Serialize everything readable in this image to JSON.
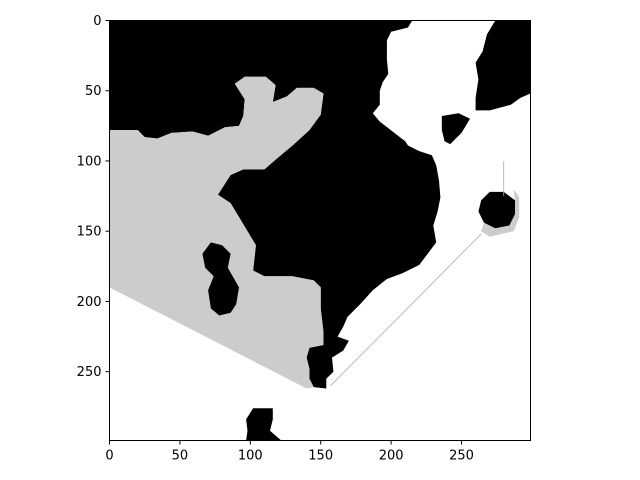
{
  "chart_data": {
    "type": "heatmap",
    "title": "",
    "xlabel": "",
    "ylabel": "",
    "xlim": [
      0,
      299
    ],
    "ylim": [
      299,
      0
    ],
    "x_ticks": [
      0,
      50,
      100,
      150,
      200,
      250
    ],
    "y_ticks": [
      0,
      50,
      100,
      150,
      200,
      250
    ],
    "x_tick_labels": [
      "0",
      "50",
      "100",
      "150",
      "200",
      "250"
    ],
    "y_tick_labels": [
      "0",
      "50",
      "100",
      "150",
      "200",
      "250"
    ],
    "grid": false,
    "colormap": "gray",
    "value_levels": [
      {
        "value": 0,
        "color": "#000000"
      },
      {
        "value": 0.8,
        "color": "#cccccc"
      },
      {
        "value": 1,
        "color": "#ffffff"
      }
    ],
    "regions": [
      {
        "name": "black-main",
        "value": 0,
        "points": [
          [
            0,
            0
          ],
          [
            215,
            0
          ],
          [
            212,
            5
          ],
          [
            200,
            8
          ],
          [
            197,
            14
          ],
          [
            197,
            28
          ],
          [
            198,
            38
          ],
          [
            194,
            44
          ],
          [
            192,
            50
          ],
          [
            192,
            60
          ],
          [
            187,
            66
          ],
          [
            192,
            72
          ],
          [
            210,
            86
          ],
          [
            212,
            89
          ],
          [
            220,
            93
          ],
          [
            229,
            96
          ],
          [
            232,
            103
          ],
          [
            234,
            114
          ],
          [
            235,
            126
          ],
          [
            233,
            136
          ],
          [
            230,
            146
          ],
          [
            232,
            158
          ],
          [
            226,
            166
          ],
          [
            220,
            174
          ],
          [
            208,
            180
          ],
          [
            197,
            184
          ],
          [
            187,
            192
          ],
          [
            178,
            202
          ],
          [
            169,
            211
          ],
          [
            166,
            218
          ],
          [
            162,
            225
          ],
          [
            170,
            228
          ],
          [
            166,
            235
          ],
          [
            158,
            240
          ],
          [
            159,
            250
          ],
          [
            154,
            255
          ],
          [
            154,
            262
          ],
          [
            145,
            261
          ],
          [
            142,
            255
          ],
          [
            142,
            248
          ],
          [
            140,
            240
          ],
          [
            142,
            233
          ],
          [
            152,
            231
          ],
          [
            152,
            222
          ],
          [
            150,
            205
          ],
          [
            150,
            190
          ],
          [
            145,
            185
          ],
          [
            130,
            182
          ],
          [
            110,
            182
          ],
          [
            102,
            178
          ],
          [
            104,
            160
          ],
          [
            95,
            145
          ],
          [
            86,
            130
          ],
          [
            77,
            124
          ],
          [
            86,
            110
          ],
          [
            95,
            106
          ],
          [
            110,
            106
          ],
          [
            118,
            99
          ],
          [
            130,
            89
          ],
          [
            142,
            78
          ],
          [
            150,
            67
          ],
          [
            152,
            52
          ],
          [
            145,
            48
          ],
          [
            133,
            48
          ],
          [
            126,
            54
          ],
          [
            116,
            58
          ],
          [
            118,
            46
          ],
          [
            111,
            40
          ],
          [
            96,
            40
          ],
          [
            89,
            45
          ],
          [
            96,
            56
          ],
          [
            95,
            68
          ],
          [
            92,
            75
          ],
          [
            82,
            76
          ],
          [
            70,
            82
          ],
          [
            59,
            79
          ],
          [
            44,
            80
          ],
          [
            34,
            84
          ],
          [
            25,
            83
          ],
          [
            20,
            78
          ],
          [
            0,
            78
          ]
        ]
      },
      {
        "name": "gray-region",
        "value": 0.8,
        "points": [
          [
            0,
            78
          ],
          [
            20,
            78
          ],
          [
            25,
            83
          ],
          [
            34,
            84
          ],
          [
            44,
            80
          ],
          [
            59,
            79
          ],
          [
            70,
            82
          ],
          [
            82,
            76
          ],
          [
            92,
            75
          ],
          [
            95,
            68
          ],
          [
            96,
            56
          ],
          [
            89,
            45
          ],
          [
            96,
            40
          ],
          [
            111,
            40
          ],
          [
            118,
            46
          ],
          [
            116,
            58
          ],
          [
            126,
            54
          ],
          [
            133,
            48
          ],
          [
            145,
            48
          ],
          [
            152,
            52
          ],
          [
            150,
            67
          ],
          [
            142,
            78
          ],
          [
            130,
            89
          ],
          [
            118,
            99
          ],
          [
            110,
            106
          ],
          [
            95,
            106
          ],
          [
            86,
            110
          ],
          [
            77,
            124
          ],
          [
            86,
            130
          ],
          [
            95,
            145
          ],
          [
            104,
            160
          ],
          [
            102,
            178
          ],
          [
            110,
            182
          ],
          [
            130,
            182
          ],
          [
            145,
            185
          ],
          [
            150,
            190
          ],
          [
            150,
            205
          ],
          [
            152,
            222
          ],
          [
            152,
            231
          ],
          [
            142,
            233
          ],
          [
            140,
            240
          ],
          [
            142,
            248
          ],
          [
            142,
            255
          ],
          [
            145,
            261
          ],
          [
            140,
            262
          ],
          [
            0,
            190
          ]
        ]
      },
      {
        "name": "black-upper-right",
        "value": 0,
        "points": [
          [
            274,
            0
          ],
          [
            299,
            0
          ],
          [
            299,
            52
          ],
          [
            292,
            55
          ],
          [
            285,
            60
          ],
          [
            270,
            64
          ],
          [
            260,
            64
          ],
          [
            260,
            55
          ],
          [
            262,
            42
          ],
          [
            260,
            30
          ],
          [
            265,
            22
          ],
          [
            268,
            10
          ]
        ]
      },
      {
        "name": "black-small-island-upper",
        "value": 0,
        "points": [
          [
            236,
            68
          ],
          [
            248,
            66
          ],
          [
            256,
            70
          ],
          [
            250,
            80
          ],
          [
            242,
            88
          ],
          [
            238,
            86
          ],
          [
            236,
            78
          ]
        ]
      },
      {
        "name": "black-left-blob",
        "value": 0,
        "points": [
          [
            66,
            166
          ],
          [
            72,
            158
          ],
          [
            80,
            160
          ],
          [
            86,
            166
          ],
          [
            84,
            176
          ],
          [
            92,
            190
          ],
          [
            90,
            202
          ],
          [
            86,
            208
          ],
          [
            78,
            210
          ],
          [
            72,
            205
          ],
          [
            70,
            192
          ],
          [
            74,
            182
          ],
          [
            68,
            176
          ]
        ]
      },
      {
        "name": "black-right-island",
        "value": 0,
        "points": [
          [
            264,
            128
          ],
          [
            270,
            122
          ],
          [
            280,
            122
          ],
          [
            288,
            128
          ],
          [
            288,
            138
          ],
          [
            284,
            146
          ],
          [
            274,
            148
          ],
          [
            266,
            144
          ],
          [
            262,
            136
          ]
        ]
      },
      {
        "name": "gray-right-island-edge",
        "value": 0.8,
        "points": [
          [
            266,
            144
          ],
          [
            274,
            148
          ],
          [
            284,
            146
          ],
          [
            288,
            138
          ],
          [
            288,
            128
          ],
          [
            287,
            120
          ],
          [
            291,
            126
          ],
          [
            291,
            140
          ],
          [
            287,
            150
          ],
          [
            270,
            154
          ],
          [
            264,
            150
          ]
        ]
      },
      {
        "name": "black-bottom-blob",
        "value": 0,
        "points": [
          [
            97,
            299
          ],
          [
            98,
            292
          ],
          [
            97,
            284
          ],
          [
            102,
            276
          ],
          [
            116,
            276
          ],
          [
            116,
            284
          ],
          [
            114,
            292
          ],
          [
            122,
            299
          ]
        ]
      }
    ],
    "lines": [
      {
        "name": "thin-diagonal-line",
        "points": [
          [
            157,
            260
          ],
          [
            264,
            152
          ]
        ]
      },
      {
        "name": "thin-vertical-line",
        "points": [
          [
            280,
            100
          ],
          [
            280,
            125
          ]
        ]
      }
    ]
  }
}
